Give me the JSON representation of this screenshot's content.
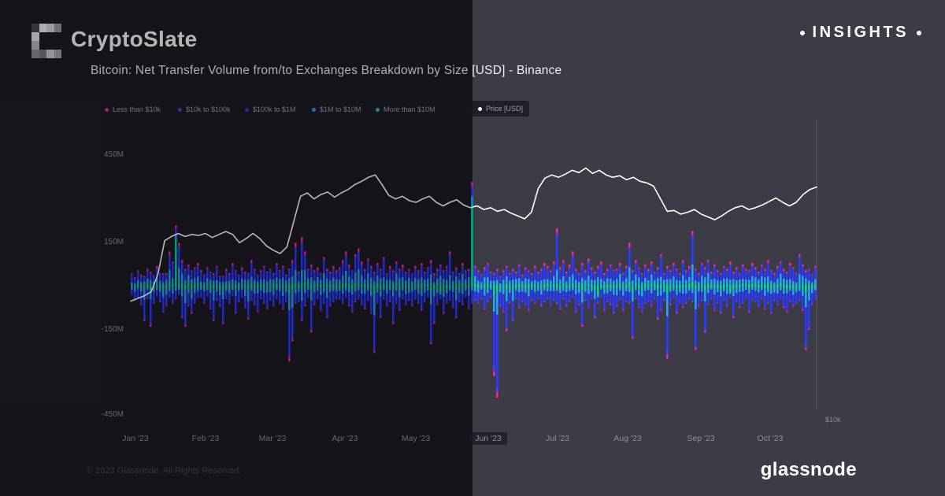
{
  "header": {
    "brand": "CryptoSlate",
    "badge": "INSIGHTS"
  },
  "title": "Bitcoin: Net Transfer Volume from/to Exchanges Breakdown by Size [USD] - Binance",
  "legend": {
    "items": [
      {
        "label": "Less than $10k",
        "color": "#e7337c"
      },
      {
        "label": "$10k to $100k",
        "color": "#6038e4"
      },
      {
        "label": "$100k to $1M",
        "color": "#2e3cf0"
      },
      {
        "label": "$1M to $10M",
        "color": "#2f9ff4"
      },
      {
        "label": "More than $10M",
        "color": "#16cfa2"
      },
      {
        "label": "Price [USD]",
        "color": "#ffffff"
      }
    ]
  },
  "footer": {
    "copyright": "© 2023 Glassnode. All Rights Reserved.",
    "brand": "glassnode"
  },
  "chart_data": {
    "type": "bar",
    "subtype": "stacked-diverging-bars-with-line",
    "title": "Bitcoin: Net Transfer Volume from/to Exchanges Breakdown by Size [USD] - Binance",
    "units": "net transfer volume in millions USD per day",
    "y_axis": {
      "ticks": [
        "450M",
        "150M",
        "-150M",
        "-450M"
      ],
      "values_m": [
        450,
        150,
        -150,
        -450
      ],
      "range_m": [
        -470,
        470
      ],
      "grid": false
    },
    "x_axis": {
      "ticks": [
        "Jan '23",
        "Feb '23",
        "Mar '23",
        "Apr '23",
        "May '23",
        "Jun '23",
        "Jul '23",
        "Aug '23",
        "Sep '23",
        "Oct '23"
      ]
    },
    "right_axis": {
      "tick": "$10k",
      "scale": "log"
    },
    "series": [
      "Less than $10k",
      "$10k to $100k",
      "$100k to $1M",
      "$1M to $10M",
      "More than $10M"
    ],
    "bars_up": [
      45,
      30,
      55,
      40,
      35,
      60,
      50,
      38,
      70,
      45,
      45,
      45,
      120,
      85,
      210,
      150,
      90,
      60,
      75,
      55,
      65,
      80,
      55,
      40,
      65,
      50,
      45,
      70,
      35,
      35,
      60,
      45,
      80,
      55,
      40,
      65,
      50,
      45,
      90,
      60,
      40,
      55,
      70,
      50,
      60,
      45,
      80,
      55,
      70,
      40,
      60,
      90,
      150,
      50,
      170,
      120,
      60,
      75,
      55,
      65,
      45,
      100,
      60,
      50,
      70,
      55,
      65,
      90,
      120,
      75,
      55,
      110,
      130,
      85,
      60,
      95,
      70,
      50,
      80,
      60,
      100,
      45,
      70,
      55,
      85,
      60,
      75,
      50,
      60,
      45,
      70,
      55,
      80,
      50,
      65,
      90,
      45,
      60,
      75,
      55,
      70,
      120,
      50,
      65,
      45,
      80,
      55,
      60,
      360,
      70,
      55,
      40,
      65,
      80,
      50,
      45,
      60,
      35,
      55,
      70,
      45,
      60,
      50,
      75,
      40,
      65,
      55,
      45,
      70,
      50,
      60,
      80,
      70,
      55,
      85,
      200,
      65,
      90,
      50,
      75,
      120,
      60,
      45,
      80,
      55,
      95,
      65,
      50,
      70,
      85,
      45,
      60,
      75,
      55,
      60,
      80,
      45,
      70,
      150,
      55,
      90,
      65,
      45,
      75,
      60,
      85,
      50,
      65,
      110,
      45,
      70,
      55,
      80,
      60,
      45,
      90,
      55,
      70,
      190,
      60,
      45,
      80,
      65,
      90,
      50,
      75,
      55,
      45,
      70,
      60,
      85,
      50,
      65,
      45,
      75,
      60,
      55,
      80,
      65,
      50,
      75,
      60,
      90,
      55,
      45,
      70,
      85,
      60,
      50,
      80,
      65,
      45,
      110,
      75,
      55,
      60,
      40,
      70
    ],
    "bars_down": [
      30,
      50,
      40,
      65,
      120,
      45,
      140,
      60,
      35,
      55,
      90,
      70,
      40,
      60,
      45,
      30,
      110,
      140,
      70,
      95,
      60,
      40,
      40,
      60,
      35,
      80,
      120,
      50,
      70,
      130,
      45,
      60,
      35,
      95,
      55,
      40,
      75,
      115,
      50,
      65,
      90,
      45,
      60,
      80,
      50,
      70,
      45,
      60,
      80,
      55,
      260,
      190,
      60,
      55,
      120,
      70,
      40,
      160,
      65,
      45,
      85,
      60,
      110,
      70,
      55,
      45,
      45,
      60,
      40,
      70,
      90,
      55,
      45,
      65,
      80,
      50,
      95,
      230,
      60,
      110,
      45,
      70,
      55,
      130,
      60,
      85,
      45,
      65,
      50,
      70,
      45,
      60,
      85,
      55,
      40,
      200,
      130,
      65,
      45,
      95,
      60,
      50,
      75,
      110,
      55,
      65,
      40,
      80,
      60,
      50,
      60,
      45,
      80,
      55,
      40,
      310,
      385,
      70,
      90,
      155,
      60,
      120,
      45,
      75,
      55,
      65,
      85,
      50,
      60,
      45,
      70,
      55,
      45,
      65,
      50,
      60,
      80,
      45,
      70,
      55,
      40,
      90,
      65,
      140,
      50,
      75,
      45,
      110,
      60,
      40,
      85,
      55,
      65,
      95,
      70,
      45,
      85,
      55,
      60,
      180,
      45,
      75,
      90,
      60,
      55,
      70,
      45,
      115,
      85,
      50,
      250,
      65,
      40,
      95,
      60,
      75,
      60,
      45,
      55,
      220,
      70,
      50,
      160,
      65,
      45,
      85,
      60,
      95,
      50,
      70,
      40,
      110,
      55,
      75,
      60,
      45,
      90,
      50,
      55,
      70,
      45,
      80,
      60,
      95,
      50,
      65,
      45,
      75,
      90,
      55,
      70,
      60,
      50,
      85,
      220,
      150,
      65,
      45
    ],
    "teal_up_spike_indices": [
      14,
      108
    ],
    "teal_down_spike_indices": [
      98,
      148,
      190
    ],
    "price_series": {
      "name": "Price [USD]",
      "unit": "USD thousands",
      "values": [
        16.8,
        17.0,
        17.2,
        17.5,
        18.9,
        21.9,
        22.3,
        22.6,
        22.3,
        22.5,
        22.4,
        22.6,
        22.2,
        22.5,
        22.8,
        22.5,
        21.7,
        22.1,
        22.6,
        22.1,
        21.4,
        21.0,
        20.7,
        21.3,
        23.8,
        26.6,
        27.0,
        26.3,
        26.8,
        27.1,
        26.5,
        27.0,
        27.4,
        28.0,
        28.4,
        28.9,
        29.2,
        28.0,
        26.7,
        26.3,
        26.6,
        26.1,
        25.9,
        26.3,
        26.6,
        25.9,
        25.5,
        25.9,
        26.2,
        25.6,
        25.3,
        25.5,
        25.1,
        25.3,
        24.9,
        25.1,
        24.7,
        24.4,
        24.1,
        24.8,
        27.5,
        28.8,
        29.2,
        28.9,
        29.3,
        29.8,
        29.5,
        30.1,
        29.4,
        29.8,
        29.2,
        28.9,
        29.1,
        28.6,
        28.9,
        28.4,
        28.2,
        27.8,
        26.3,
        24.9,
        25.0,
        24.6,
        24.8,
        25.1,
        24.6,
        24.3,
        24.0,
        24.4,
        24.9,
        25.3,
        25.5,
        25.1,
        25.3,
        25.6,
        26.0,
        26.4,
        25.9,
        25.5,
        25.9,
        26.8,
        27.4,
        27.7
      ]
    }
  }
}
